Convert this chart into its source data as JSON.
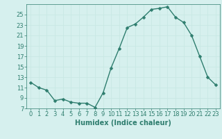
{
  "x": [
    0,
    1,
    2,
    3,
    4,
    5,
    6,
    7,
    8,
    9,
    10,
    11,
    12,
    13,
    14,
    15,
    16,
    17,
    18,
    19,
    20,
    21,
    22,
    23
  ],
  "y": [
    12,
    11,
    10.5,
    8.5,
    8.8,
    8.2,
    8.0,
    8.0,
    7.2,
    10.0,
    14.8,
    18.5,
    22.5,
    23.2,
    24.5,
    26.0,
    26.2,
    26.5,
    24.5,
    23.5,
    21.0,
    17.0,
    13.0,
    11.5
  ],
  "xlim": [
    -0.5,
    23.5
  ],
  "ylim": [
    7,
    27
  ],
  "yticks": [
    7,
    9,
    11,
    13,
    15,
    17,
    19,
    21,
    23,
    25
  ],
  "xticks": [
    0,
    1,
    2,
    3,
    4,
    5,
    6,
    7,
    8,
    9,
    10,
    11,
    12,
    13,
    14,
    15,
    16,
    17,
    18,
    19,
    20,
    21,
    22,
    23
  ],
  "xlabel": "Humidex (Indice chaleur)",
  "line_color": "#2e7d6e",
  "marker_color": "#2e7d6e",
  "bg_color": "#d6f0ee",
  "grid_color": "#c8e8e4",
  "xlabel_fontsize": 7,
  "tick_fontsize": 6,
  "linewidth": 1.0,
  "markersize": 2.5
}
